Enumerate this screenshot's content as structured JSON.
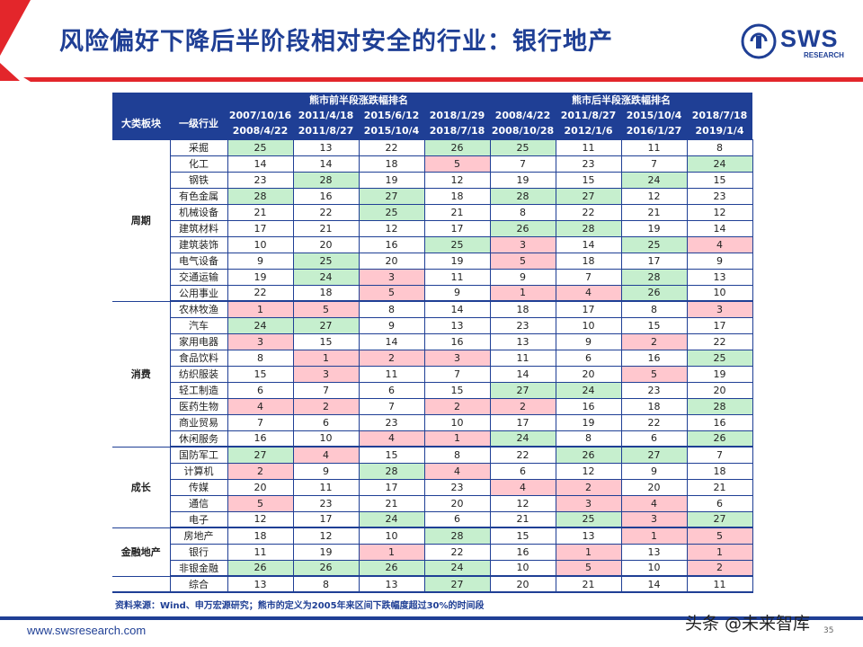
{
  "header": {
    "title": "风险偏好下降后半阶段相对安全的行业：银行地产",
    "logo_text": "SWS",
    "logo_sub": "RESEARCH",
    "colors": {
      "brand_blue": "#1f3f95",
      "accent_red": "#e3262b"
    }
  },
  "table": {
    "group_headers": [
      "熊市前半段涨跌幅排名",
      "熊市后半段涨跌幅排名"
    ],
    "col_category": "大类板块",
    "col_industry": "一级行业",
    "periods": [
      {
        "start": "2007/10/16",
        "end": "2008/4/22"
      },
      {
        "start": "2011/4/18",
        "end": "2011/8/27"
      },
      {
        "start": "2015/6/12",
        "end": "2015/10/4"
      },
      {
        "start": "2018/1/29",
        "end": "2018/7/18"
      },
      {
        "start": "2008/4/22",
        "end": "2008/10/28"
      },
      {
        "start": "2011/8/27",
        "end": "2012/1/6"
      },
      {
        "start": "2015/10/4",
        "end": "2016/1/27"
      },
      {
        "start": "2018/7/18",
        "end": "2019/1/4"
      }
    ],
    "groups": [
      {
        "name": "周期",
        "rows": [
          {
            "industry": "采掘",
            "values": [
              25,
              13,
              22,
              26,
              25,
              11,
              11,
              8
            ]
          },
          {
            "industry": "化工",
            "values": [
              14,
              14,
              18,
              5,
              7,
              23,
              7,
              24
            ]
          },
          {
            "industry": "钢铁",
            "values": [
              23,
              28,
              19,
              12,
              19,
              15,
              24,
              15
            ]
          },
          {
            "industry": "有色金属",
            "values": [
              28,
              16,
              27,
              18,
              28,
              27,
              12,
              23
            ]
          },
          {
            "industry": "机械设备",
            "values": [
              21,
              22,
              25,
              21,
              8,
              22,
              21,
              12
            ]
          },
          {
            "industry": "建筑材料",
            "values": [
              17,
              21,
              12,
              17,
              26,
              28,
              19,
              14
            ]
          },
          {
            "industry": "建筑装饰",
            "values": [
              10,
              20,
              16,
              25,
              3,
              14,
              25,
              4
            ]
          },
          {
            "industry": "电气设备",
            "values": [
              9,
              25,
              20,
              19,
              5,
              18,
              17,
              9
            ]
          },
          {
            "industry": "交通运输",
            "values": [
              19,
              24,
              3,
              11,
              9,
              7,
              28,
              13
            ]
          },
          {
            "industry": "公用事业",
            "values": [
              22,
              18,
              5,
              9,
              1,
              4,
              26,
              10
            ]
          }
        ]
      },
      {
        "name": "消费",
        "rows": [
          {
            "industry": "农林牧渔",
            "values": [
              1,
              5,
              8,
              14,
              18,
              17,
              8,
              3
            ]
          },
          {
            "industry": "汽车",
            "values": [
              24,
              27,
              9,
              13,
              23,
              10,
              15,
              17
            ]
          },
          {
            "industry": "家用电器",
            "values": [
              3,
              15,
              14,
              16,
              13,
              9,
              2,
              22
            ]
          },
          {
            "industry": "食品饮料",
            "values": [
              8,
              1,
              2,
              3,
              11,
              6,
              16,
              25
            ]
          },
          {
            "industry": "纺织服装",
            "values": [
              15,
              3,
              11,
              7,
              14,
              20,
              5,
              19
            ]
          },
          {
            "industry": "轻工制造",
            "values": [
              6,
              7,
              6,
              15,
              27,
              24,
              23,
              20
            ]
          },
          {
            "industry": "医药生物",
            "values": [
              4,
              2,
              7,
              2,
              2,
              16,
              18,
              28
            ]
          },
          {
            "industry": "商业贸易",
            "values": [
              7,
              6,
              23,
              10,
              17,
              19,
              22,
              16
            ]
          },
          {
            "industry": "休闲服务",
            "values": [
              16,
              10,
              4,
              1,
              24,
              8,
              6,
              26
            ]
          }
        ]
      },
      {
        "name": "成长",
        "rows": [
          {
            "industry": "国防军工",
            "values": [
              27,
              4,
              15,
              8,
              22,
              26,
              27,
              7
            ]
          },
          {
            "industry": "计算机",
            "values": [
              2,
              9,
              28,
              4,
              6,
              12,
              9,
              18
            ]
          },
          {
            "industry": "传媒",
            "values": [
              20,
              11,
              17,
              23,
              4,
              2,
              20,
              21
            ]
          },
          {
            "industry": "通信",
            "values": [
              5,
              23,
              21,
              20,
              12,
              3,
              4,
              6
            ]
          },
          {
            "industry": "电子",
            "values": [
              12,
              17,
              24,
              6,
              21,
              25,
              3,
              27
            ]
          }
        ]
      },
      {
        "name": "金融地产",
        "rows": [
          {
            "industry": "房地产",
            "values": [
              18,
              12,
              10,
              28,
              15,
              13,
              1,
              5
            ]
          },
          {
            "industry": "银行",
            "values": [
              11,
              19,
              1,
              22,
              16,
              1,
              13,
              1
            ]
          },
          {
            "industry": "非银金融",
            "values": [
              26,
              26,
              26,
              24,
              10,
              5,
              10,
              2
            ]
          }
        ]
      },
      {
        "name": "",
        "rows": [
          {
            "industry": "综合",
            "values": [
              13,
              8,
              13,
              27,
              20,
              21,
              14,
              11
            ]
          }
        ]
      }
    ],
    "cell_colors": {
      "top_rank": "#c6efce",
      "bottom_rank": "#ffc7ce"
    },
    "source_note": "资料来源：Wind、申万宏源研究；熊市的定义为2005年来区间下跌幅度超过30%的时间段"
  },
  "footer": {
    "url": "www.swsresearch.com",
    "watermark": "头条 @未来智库",
    "page": "35"
  }
}
